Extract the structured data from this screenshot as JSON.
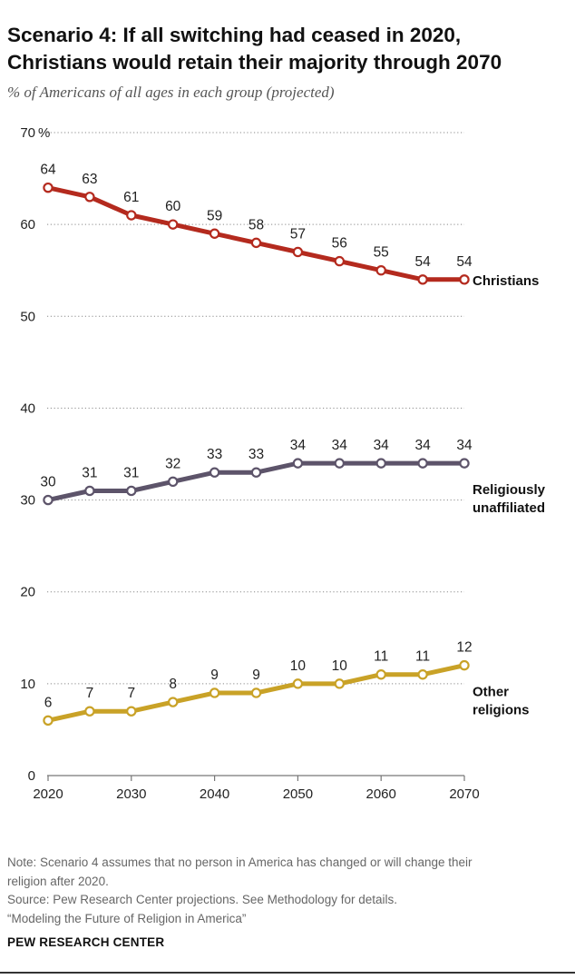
{
  "header": {
    "title_line1": "Scenario 4: If all switching had ceased in 2020,",
    "title_line2": "Christians would retain their majority through 2070",
    "subtitle": "% of Americans of all ages in each group (projected)"
  },
  "chart_data": {
    "type": "line",
    "x": [
      2020,
      2025,
      2030,
      2035,
      2040,
      2045,
      2050,
      2055,
      2060,
      2065,
      2070
    ],
    "xticks": [
      2020,
      2030,
      2040,
      2050,
      2060,
      2070
    ],
    "yticks": [
      0,
      10,
      20,
      30,
      40,
      50,
      60,
      70
    ],
    "ylim": [
      0,
      70
    ],
    "y_unit_label": "%",
    "grid": true,
    "series": [
      {
        "name": "Christians",
        "label_lines": [
          "Christians"
        ],
        "color": "#b42a1e",
        "values": [
          64,
          63,
          61,
          60,
          59,
          58,
          57,
          56,
          55,
          54,
          54
        ]
      },
      {
        "name": "Religiously unaffiliated",
        "label_lines": [
          "Religiously",
          "unaffiliated"
        ],
        "color": "#5d546a",
        "values": [
          30,
          31,
          31,
          32,
          33,
          33,
          34,
          34,
          34,
          34,
          34
        ]
      },
      {
        "name": "Other religions",
        "label_lines": [
          "Other",
          "religions"
        ],
        "color": "#c9a227",
        "values": [
          6,
          7,
          7,
          8,
          9,
          9,
          10,
          10,
          11,
          11,
          12
        ]
      }
    ]
  },
  "notes": {
    "note_line1": "Note: Scenario 4 assumes that no person in America has changed or will change their",
    "note_line2": "religion after 2020.",
    "source": "Source: Pew Research Center projections. See Methodology for details.",
    "report": "“Modeling the Future of Religion in America”"
  },
  "footer": {
    "brand": "PEW RESEARCH CENTER"
  }
}
